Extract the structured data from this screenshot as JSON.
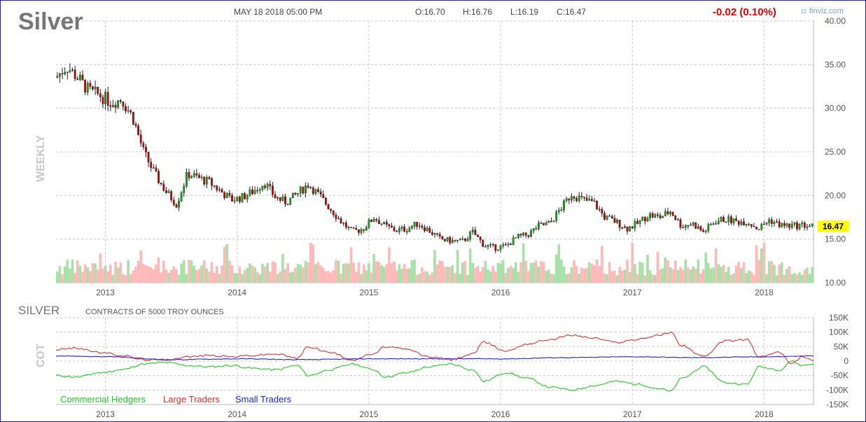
{
  "header": {
    "symbol": "Silver",
    "datetime": "MAY 18 2018 05:00 PM",
    "open": "O:16.70",
    "high": "H:16.76",
    "low": "L:16.19",
    "close": "C:16.47",
    "change": "-0.02 (0.10%)",
    "brand": "finviz.com",
    "period": "WEEKLY"
  },
  "colors": {
    "up": "#15a815",
    "down": "#c40000",
    "vol_up": "#a8e0a8",
    "vol_down": "#ffb9b9",
    "grid": "#c8c8c8",
    "axis_text": "#555555",
    "change": "#e00000",
    "last_price_bg": "#ffff00",
    "hedgers": "#22cc22",
    "large": "#e03030",
    "small": "#2020dd"
  },
  "cot": {
    "title": "SILVER",
    "subtitle": "CONTRACTS OF 5000 TROY OUNCES",
    "side_label": "COT",
    "legend": [
      "Commercial Hedgers",
      "Large Traders",
      "Small Traders"
    ]
  },
  "chart_data": [
    {
      "type": "candlestick",
      "title": "Silver",
      "x_ticks": [
        "2013",
        "2014",
        "2015",
        "2016",
        "2017",
        "2018"
      ],
      "y_ticks": [
        "40.00",
        "35.00",
        "30.00",
        "25.00",
        "20.00",
        "15.00",
        "10.00"
      ],
      "ylim": [
        10,
        40
      ],
      "last_price": "16.47",
      "price_path": [
        [
          "2012-08",
          33.5
        ],
        [
          "2012-09",
          34.8
        ],
        [
          "2012-10",
          33.5
        ],
        [
          "2012-11",
          32.0
        ],
        [
          "2012-12",
          31.5
        ],
        [
          "2013-01",
          30.7
        ],
        [
          "2013-02",
          31.0
        ],
        [
          "2013-03",
          29.0
        ],
        [
          "2013-04",
          25.0
        ],
        [
          "2013-05",
          22.5
        ],
        [
          "2013-06",
          20.5
        ],
        [
          "2013-07",
          19.0
        ],
        [
          "2013-08",
          22.5
        ],
        [
          "2013-09",
          22.0
        ],
        [
          "2013-10",
          21.5
        ],
        [
          "2013-11",
          20.5
        ],
        [
          "2013-12",
          19.5
        ],
        [
          "2014-01",
          19.8
        ],
        [
          "2014-02",
          20.5
        ],
        [
          "2014-03",
          21.5
        ],
        [
          "2014-04",
          19.8
        ],
        [
          "2014-05",
          19.2
        ],
        [
          "2014-06",
          20.2
        ],
        [
          "2014-07",
          21.3
        ],
        [
          "2014-08",
          20.0
        ],
        [
          "2014-09",
          18.5
        ],
        [
          "2014-10",
          17.0
        ],
        [
          "2014-11",
          15.8
        ],
        [
          "2014-12",
          16.2
        ],
        [
          "2015-01",
          17.5
        ],
        [
          "2015-02",
          16.5
        ],
        [
          "2015-03",
          16.0
        ],
        [
          "2015-04",
          16.2
        ],
        [
          "2015-05",
          16.8
        ],
        [
          "2015-06",
          16.0
        ],
        [
          "2015-07",
          15.0
        ],
        [
          "2015-08",
          14.8
        ],
        [
          "2015-09",
          14.7
        ],
        [
          "2015-10",
          15.8
        ],
        [
          "2015-11",
          14.3
        ],
        [
          "2015-12",
          14.0
        ],
        [
          "2016-01",
          14.2
        ],
        [
          "2016-02",
          15.2
        ],
        [
          "2016-03",
          15.5
        ],
        [
          "2016-04",
          16.5
        ],
        [
          "2016-05",
          16.8
        ],
        [
          "2016-06",
          18.5
        ],
        [
          "2016-07",
          20.2
        ],
        [
          "2016-08",
          19.5
        ],
        [
          "2016-09",
          19.2
        ],
        [
          "2016-10",
          17.5
        ],
        [
          "2016-11",
          17.0
        ],
        [
          "2016-12",
          16.2
        ],
        [
          "2017-01",
          16.8
        ],
        [
          "2017-02",
          17.8
        ],
        [
          "2017-03",
          17.5
        ],
        [
          "2017-04",
          18.2
        ],
        [
          "2017-05",
          16.5
        ],
        [
          "2017-06",
          16.8
        ],
        [
          "2017-07",
          15.8
        ],
        [
          "2017-08",
          17.0
        ],
        [
          "2017-09",
          17.3
        ],
        [
          "2017-10",
          17.0
        ],
        [
          "2017-11",
          17.0
        ],
        [
          "2017-12",
          16.2
        ],
        [
          "2018-01",
          17.2
        ],
        [
          "2018-02",
          16.6
        ],
        [
          "2018-03",
          16.5
        ],
        [
          "2018-04",
          16.6
        ],
        [
          "2018-05",
          16.47
        ]
      ]
    },
    {
      "type": "line",
      "title": "SILVER",
      "subtitle": "CONTRACTS OF 5000 TROY OUNCES",
      "x_ticks": [
        "2013",
        "2014",
        "2015",
        "2016",
        "2017",
        "2018"
      ],
      "y_ticks": [
        "150K",
        "100K",
        "50K",
        "0",
        "-50K",
        "-100K",
        "-150K"
      ],
      "ylim": [
        -150000,
        150000
      ],
      "series": [
        {
          "name": "Commercial Hedgers",
          "values": [
            [
              "2012-08",
              -50000
            ],
            [
              "2012-10",
              -55000
            ],
            [
              "2012-12",
              -40000
            ],
            [
              "2013-02",
              -30000
            ],
            [
              "2013-04",
              -10000
            ],
            [
              "2013-06",
              -5000
            ],
            [
              "2013-08",
              -15000
            ],
            [
              "2013-10",
              -20000
            ],
            [
              "2013-12",
              -15000
            ],
            [
              "2014-02",
              -25000
            ],
            [
              "2014-04",
              -30000
            ],
            [
              "2014-06",
              -15000
            ],
            [
              "2014-07",
              -50000
            ],
            [
              "2014-09",
              -30000
            ],
            [
              "2014-11",
              -10000
            ],
            [
              "2015-01",
              -30000
            ],
            [
              "2015-02",
              -55000
            ],
            [
              "2015-04",
              -40000
            ],
            [
              "2015-06",
              -20000
            ],
            [
              "2015-08",
              -10000
            ],
            [
              "2015-10",
              -30000
            ],
            [
              "2015-11",
              -70000
            ],
            [
              "2016-01",
              -40000
            ],
            [
              "2016-03",
              -60000
            ],
            [
              "2016-05",
              -90000
            ],
            [
              "2016-07",
              -100000
            ],
            [
              "2016-09",
              -85000
            ],
            [
              "2016-11",
              -70000
            ],
            [
              "2017-01",
              -80000
            ],
            [
              "2017-03",
              -95000
            ],
            [
              "2017-04",
              -105000
            ],
            [
              "2017-05",
              -60000
            ],
            [
              "2017-07",
              -20000
            ],
            [
              "2017-09",
              -75000
            ],
            [
              "2017-11",
              -80000
            ],
            [
              "2017-12",
              -20000
            ],
            [
              "2018-02",
              -30000
            ],
            [
              "2018-03",
              0
            ],
            [
              "2018-04",
              -15000
            ],
            [
              "2018-05",
              -10000
            ]
          ]
        },
        {
          "name": "Large Traders",
          "values": [
            [
              "2012-08",
              40000
            ],
            [
              "2012-10",
              45000
            ],
            [
              "2012-12",
              30000
            ],
            [
              "2013-02",
              20000
            ],
            [
              "2013-04",
              5000
            ],
            [
              "2013-06",
              5000
            ],
            [
              "2013-08",
              15000
            ],
            [
              "2013-10",
              20000
            ],
            [
              "2013-12",
              15000
            ],
            [
              "2014-02",
              20000
            ],
            [
              "2014-04",
              25000
            ],
            [
              "2014-06",
              10000
            ],
            [
              "2014-07",
              50000
            ],
            [
              "2014-09",
              30000
            ],
            [
              "2014-11",
              5000
            ],
            [
              "2015-01",
              25000
            ],
            [
              "2015-02",
              50000
            ],
            [
              "2015-04",
              40000
            ],
            [
              "2015-06",
              15000
            ],
            [
              "2015-08",
              5000
            ],
            [
              "2015-10",
              25000
            ],
            [
              "2015-11",
              65000
            ],
            [
              "2016-01",
              35000
            ],
            [
              "2016-03",
              60000
            ],
            [
              "2016-05",
              75000
            ],
            [
              "2016-07",
              90000
            ],
            [
              "2016-09",
              80000
            ],
            [
              "2016-11",
              65000
            ],
            [
              "2017-01",
              75000
            ],
            [
              "2017-03",
              90000
            ],
            [
              "2017-04",
              100000
            ],
            [
              "2017-05",
              55000
            ],
            [
              "2017-07",
              15000
            ],
            [
              "2017-09",
              70000
            ],
            [
              "2017-11",
              75000
            ],
            [
              "2017-12",
              15000
            ],
            [
              "2018-02",
              30000
            ],
            [
              "2018-03",
              -10000
            ],
            [
              "2018-04",
              15000
            ],
            [
              "2018-05",
              5000
            ]
          ]
        },
        {
          "name": "Small Traders",
          "values": [
            [
              "2012-08",
              18000
            ],
            [
              "2013-01",
              15000
            ],
            [
              "2013-06",
              5000
            ],
            [
              "2014-01",
              8000
            ],
            [
              "2014-06",
              5000
            ],
            [
              "2015-01",
              8000
            ],
            [
              "2015-06",
              8000
            ],
            [
              "2016-01",
              8000
            ],
            [
              "2016-06",
              12000
            ],
            [
              "2017-01",
              15000
            ],
            [
              "2017-06",
              12000
            ],
            [
              "2018-01",
              15000
            ],
            [
              "2018-05",
              18000
            ]
          ]
        }
      ]
    }
  ]
}
